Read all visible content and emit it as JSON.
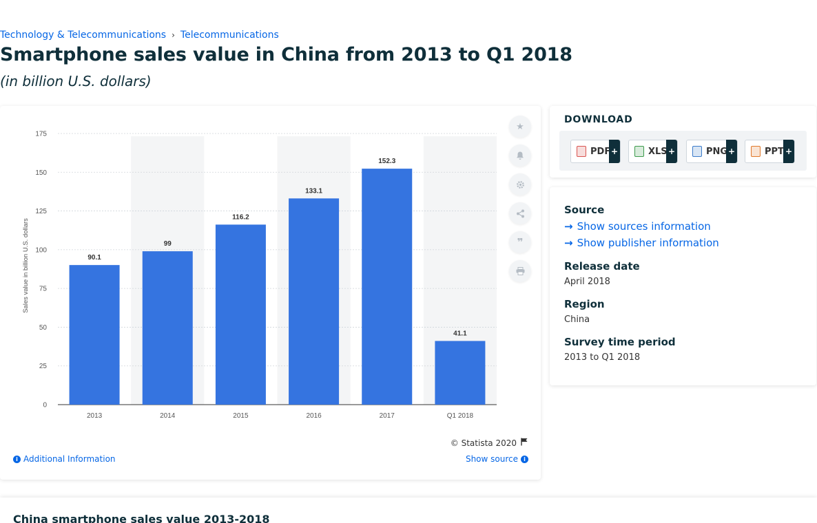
{
  "breadcrumb": {
    "item1": "Technology & Telecommunications",
    "sep": "›",
    "item2": "Telecommunications"
  },
  "title": "Smartphone sales value in China from 2013 to Q1 2018",
  "subtitle": "(in billion U.S. dollars)",
  "chart_data": {
    "type": "bar",
    "categories": [
      "2013",
      "2014",
      "2015",
      "2016",
      "2017",
      "Q1 2018"
    ],
    "values": [
      90.1,
      99,
      116.2,
      133.1,
      152.3,
      41.1
    ],
    "value_labels": [
      "90.1",
      "99",
      "116.2",
      "133.1",
      "152.3",
      "41.1"
    ],
    "ylabel": "Sales value in billion U.S. dollars",
    "xlabel": "",
    "ylim": [
      0,
      175
    ],
    "yticks": [
      0,
      25,
      50,
      75,
      100,
      125,
      150,
      175
    ],
    "grid": true,
    "bar_color": "#3574e0"
  },
  "tools": {
    "favorite": "star-icon",
    "notify": "bell-icon",
    "settings": "gear-icon",
    "share": "share-icon",
    "cite": "quote-icon",
    "print": "print-icon"
  },
  "footer": {
    "copyright": "© Statista 2020",
    "additional_info": "Additional Information",
    "show_source": "Show source"
  },
  "download": {
    "title": "DOWNLOAD",
    "buttons": [
      {
        "label": "PDF",
        "plus": "+",
        "color": "#d9534f"
      },
      {
        "label": "XLS",
        "plus": "+",
        "color": "#3c9a4c"
      },
      {
        "label": "PNG",
        "plus": "+",
        "color": "#3b7bc9"
      },
      {
        "label": "PPT",
        "plus": "+",
        "color": "#e0782a"
      }
    ]
  },
  "meta": {
    "source_label": "Source",
    "show_sources": "Show sources information",
    "show_publisher": "Show publisher information",
    "release_label": "Release date",
    "release_value": "April 2018",
    "region_label": "Region",
    "region_value": "China",
    "survey_label": "Survey time period",
    "survey_value": "2013 to Q1 2018"
  },
  "bottom": {
    "title": "China smartphone sales value 2013-2018"
  }
}
